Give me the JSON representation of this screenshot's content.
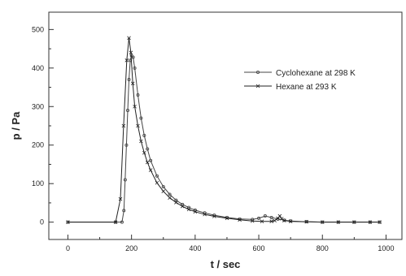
{
  "chart_data": {
    "type": "line",
    "xlabel": "t / sec",
    "ylabel": "p / Pa",
    "xlim": [
      -60,
      1050
    ],
    "ylim": [
      -45,
      545
    ],
    "xticks": [
      0,
      200,
      400,
      600,
      800,
      1000
    ],
    "yticks": [
      0,
      100,
      200,
      300,
      400,
      500
    ],
    "grid": false,
    "legend_position": "top-right",
    "series": [
      {
        "name": "Cyclohexane at 298 K",
        "marker": "circle",
        "color": "#444444",
        "x": [
          0,
          150,
          170,
          176,
          180,
          184,
          188,
          192,
          196,
          200,
          205,
          210,
          220,
          230,
          240,
          250,
          260,
          280,
          300,
          320,
          340,
          360,
          380,
          400,
          430,
          460,
          500,
          540,
          580,
          600,
          620,
          640,
          660,
          680,
          700,
          750,
          800,
          850,
          900,
          950,
          980
        ],
        "y": [
          0,
          0,
          0,
          30,
          110,
          200,
          290,
          370,
          420,
          432,
          428,
          400,
          330,
          270,
          225,
          190,
          160,
          120,
          92,
          72,
          57,
          46,
          38,
          31,
          24,
          18,
          12,
          8,
          7,
          10,
          16,
          12,
          8,
          5,
          3,
          1,
          0,
          0,
          0,
          0,
          0
        ]
      },
      {
        "name": "Hexane at 293 K",
        "marker": "x",
        "color": "#222222",
        "x": [
          0,
          150,
          165,
          175,
          185,
          192,
          198,
          204,
          210,
          220,
          230,
          240,
          250,
          260,
          280,
          300,
          320,
          340,
          360,
          380,
          400,
          430,
          460,
          500,
          540,
          580,
          610,
          640,
          650,
          660,
          666,
          672,
          680,
          700,
          750,
          800,
          850,
          900,
          950,
          980
        ],
        "y": [
          0,
          0,
          60,
          250,
          420,
          478,
          440,
          360,
          300,
          250,
          210,
          180,
          155,
          135,
          102,
          80,
          63,
          51,
          41,
          33,
          27,
          20,
          15,
          10,
          6,
          3,
          2,
          2,
          4,
          10,
          16,
          9,
          4,
          2,
          1,
          0,
          0,
          0,
          0,
          0
        ]
      }
    ]
  }
}
